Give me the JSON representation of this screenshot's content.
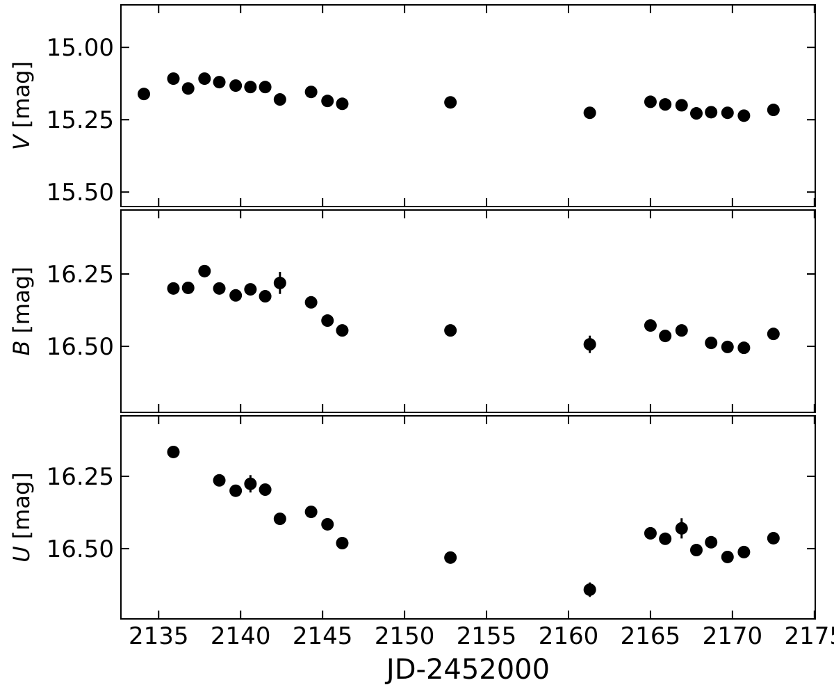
{
  "chart_data": [
    {
      "type": "scatter",
      "ylabel_symbol": "V",
      "ylabel_unit": "[mag]",
      "color": "#000000",
      "xlim": [
        2132.7,
        2175.05
      ],
      "xticks": [
        2135,
        2140,
        2145,
        2150,
        2155,
        2160,
        2165,
        2170,
        2175
      ],
      "ylim": [
        15.55,
        14.853
      ],
      "yticks": [
        {
          "value": 15.0,
          "label": "15.00"
        },
        {
          "value": 15.25,
          "label": "15.25"
        },
        {
          "value": 15.5,
          "label": "15.50"
        }
      ],
      "x": [
        2134.1,
        2135.9,
        2136.8,
        2137.8,
        2138.7,
        2139.7,
        2140.6,
        2141.5,
        2142.4,
        2144.3,
        2145.3,
        2146.2,
        2152.8,
        2161.3,
        2165.0,
        2165.9,
        2166.9,
        2167.8,
        2168.7,
        2169.7,
        2170.7,
        2172.5
      ],
      "values": [
        15.161,
        15.108,
        15.142,
        15.108,
        15.12,
        15.132,
        15.137,
        15.137,
        15.18,
        15.154,
        15.185,
        15.195,
        15.19,
        15.226,
        15.188,
        15.197,
        15.2,
        15.228,
        15.224,
        15.226,
        15.236,
        15.216
      ],
      "errors": [
        0.01,
        0.01,
        0.01,
        0.01,
        0.01,
        0.01,
        0.01,
        0.01,
        0.01,
        0.01,
        0.01,
        0.01,
        0.01,
        0.01,
        0.01,
        0.01,
        0.01,
        0.01,
        0.01,
        0.01,
        0.01,
        0.01
      ]
    },
    {
      "type": "scatter",
      "ylabel_symbol": "B",
      "ylabel_unit": "[mag]",
      "color": "#000000",
      "xlim": [
        2132.7,
        2175.05
      ],
      "xticks": [
        2135,
        2140,
        2145,
        2150,
        2155,
        2160,
        2165,
        2170,
        2175
      ],
      "ylim": [
        16.728,
        16.029
      ],
      "yticks": [
        16.25,
        {
          "value": 16.5,
          "label": "16.50"
        }
      ],
      "x": [
        2135.9,
        2136.8,
        2137.8,
        2138.7,
        2139.7,
        2140.6,
        2141.5,
        2142.4,
        2144.3,
        2145.3,
        2146.2,
        2152.8,
        2161.3,
        2165.0,
        2165.9,
        2166.9,
        2168.7,
        2169.7,
        2170.7,
        2172.5
      ],
      "values": [
        16.3,
        16.298,
        16.24,
        16.3,
        16.324,
        16.303,
        16.327,
        16.281,
        16.348,
        16.411,
        16.445,
        16.445,
        16.493,
        16.428,
        16.464,
        16.445,
        16.488,
        16.502,
        16.505,
        16.457
      ],
      "errors": [
        0.01,
        0.01,
        0.01,
        0.01,
        0.01,
        0.01,
        0.01,
        0.038,
        0.01,
        0.01,
        0.01,
        0.02,
        0.03,
        0.01,
        0.01,
        0.01,
        0.01,
        0.01,
        0.01,
        0.01
      ]
    },
    {
      "type": "scatter",
      "ylabel_symbol": "U",
      "ylabel_unit": "[mag]",
      "color": "#000000",
      "xlabel": "JD-2452000",
      "xlim": [
        2132.7,
        2175.05
      ],
      "xticks": [
        2135,
        2140,
        2145,
        2150,
        2155,
        2160,
        2165,
        2170,
        2175
      ],
      "ylim": [
        16.743,
        16.041
      ],
      "yticks": [
        16.25,
        {
          "value": 16.5,
          "label": "16.50"
        }
      ],
      "x": [
        2135.9,
        2138.7,
        2139.7,
        2140.6,
        2141.5,
        2142.4,
        2144.3,
        2145.3,
        2146.2,
        2152.8,
        2161.3,
        2165.0,
        2165.9,
        2166.9,
        2167.8,
        2168.7,
        2169.7,
        2170.7,
        2172.5
      ],
      "values": [
        16.166,
        16.264,
        16.3,
        16.276,
        16.296,
        16.397,
        16.373,
        16.416,
        16.481,
        16.531,
        16.642,
        16.447,
        16.466,
        16.43,
        16.505,
        16.478,
        16.529,
        16.512,
        16.464
      ],
      "errors": [
        0.01,
        0.01,
        0.01,
        0.03,
        0.01,
        0.01,
        0.01,
        0.01,
        0.01,
        0.01,
        0.025,
        0.02,
        0.015,
        0.035,
        0.01,
        0.01,
        0.01,
        0.01,
        0.015
      ]
    }
  ]
}
